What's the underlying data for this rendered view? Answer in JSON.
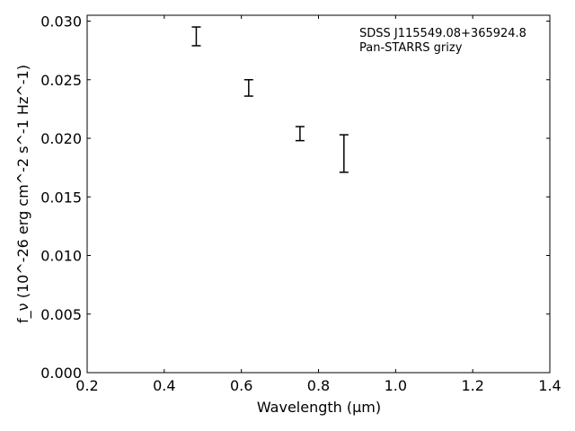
{
  "chart_data": {
    "type": "scatter",
    "title": "",
    "xlabel": "Wavelength (μm)",
    "ylabel": "f_ν (10^-26 erg cm^-2 s^-1 Hz^-1)",
    "xlim": [
      0.2,
      1.4
    ],
    "ylim": [
      0.0,
      0.0305
    ],
    "x_ticks": [
      0.2,
      0.4,
      0.6,
      0.8,
      1.0,
      1.2,
      1.4
    ],
    "x_tick_labels": [
      "0.2",
      "0.4",
      "0.6",
      "0.8",
      "1.0",
      "1.2",
      "1.4"
    ],
    "y_ticks": [
      0.0,
      0.005,
      0.01,
      0.015,
      0.02,
      0.025,
      0.03
    ],
    "y_tick_labels": [
      "0.000",
      "0.005",
      "0.010",
      "0.015",
      "0.020",
      "0.025",
      "0.030"
    ],
    "grid": false,
    "annotations": [
      "SDSS J115549.08+365924.8",
      "Pan-STARRS grizy"
    ],
    "points": [
      {
        "x": 0.483,
        "y": 0.0287,
        "yerr": 0.0008
      },
      {
        "x": 0.619,
        "y": 0.0243,
        "yerr": 0.0007
      },
      {
        "x": 0.752,
        "y": 0.0204,
        "yerr": 0.0006
      },
      {
        "x": 0.866,
        "y": 0.0187,
        "yerr": 0.0016
      }
    ]
  }
}
